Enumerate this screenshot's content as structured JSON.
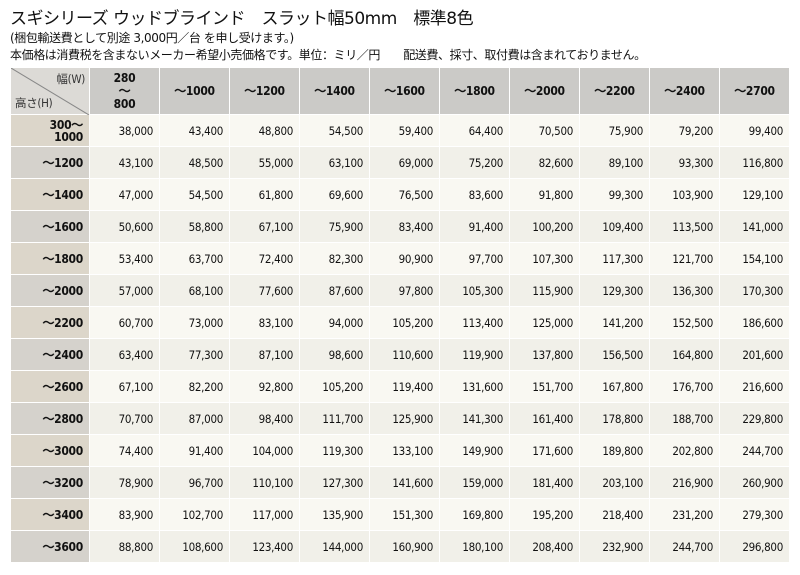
{
  "title": "スギシリーズ ウッドブラインド　スラット幅50mm　標準8色",
  "note1": "(梱包輸送費として別途 3,000円／台 を申し受けます。)",
  "note2": "本価格は消費税を含まないメーカー希望小売価格です。単位：ミリ／円　　配送費、採寸、取付費は含まれておりません。",
  "table": {
    "corner_width": "幅(W)",
    "corner_height": "高さ(H)",
    "columns": [
      "280\n～\n800",
      "～1000",
      "～1200",
      "～1400",
      "～1600",
      "～1800",
      "～2000",
      "～2200",
      "～2400",
      "～2700"
    ],
    "rows": [
      {
        "h": "300～\n1000",
        "v": [
          "38,000",
          "43,400",
          "48,800",
          "54,500",
          "59,400",
          "64,400",
          "70,500",
          "75,900",
          "79,200",
          "99,400"
        ]
      },
      {
        "h": "～1200",
        "v": [
          "43,100",
          "48,500",
          "55,000",
          "63,100",
          "69,000",
          "75,200",
          "82,600",
          "89,100",
          "93,300",
          "116,800"
        ]
      },
      {
        "h": "～1400",
        "v": [
          "47,000",
          "54,500",
          "61,800",
          "69,600",
          "76,500",
          "83,600",
          "91,800",
          "99,300",
          "103,900",
          "129,100"
        ]
      },
      {
        "h": "～1600",
        "v": [
          "50,600",
          "58,800",
          "67,100",
          "75,900",
          "83,400",
          "91,400",
          "100,200",
          "109,400",
          "113,500",
          "141,000"
        ]
      },
      {
        "h": "～1800",
        "v": [
          "53,400",
          "63,700",
          "72,400",
          "82,300",
          "90,900",
          "97,700",
          "107,300",
          "117,300",
          "121,700",
          "154,100"
        ]
      },
      {
        "h": "～2000",
        "v": [
          "57,000",
          "68,100",
          "77,600",
          "87,600",
          "97,800",
          "105,300",
          "115,900",
          "129,300",
          "136,300",
          "170,300"
        ]
      },
      {
        "h": "～2200",
        "v": [
          "60,700",
          "73,000",
          "83,100",
          "94,000",
          "105,200",
          "113,400",
          "125,000",
          "141,200",
          "152,500",
          "186,600"
        ]
      },
      {
        "h": "～2400",
        "v": [
          "63,400",
          "77,300",
          "87,100",
          "98,600",
          "110,600",
          "119,900",
          "137,800",
          "156,500",
          "164,800",
          "201,600"
        ]
      },
      {
        "h": "～2600",
        "v": [
          "67,100",
          "82,200",
          "92,800",
          "105,200",
          "119,400",
          "131,600",
          "151,700",
          "167,800",
          "176,700",
          "216,600"
        ]
      },
      {
        "h": "～2800",
        "v": [
          "70,700",
          "87,000",
          "98,400",
          "111,700",
          "125,900",
          "141,300",
          "161,400",
          "178,800",
          "188,700",
          "229,800"
        ]
      },
      {
        "h": "～3000",
        "v": [
          "74,400",
          "91,400",
          "104,000",
          "119,300",
          "133,100",
          "149,900",
          "171,600",
          "189,800",
          "202,800",
          "244,700"
        ]
      },
      {
        "h": "～3200",
        "v": [
          "78,900",
          "96,700",
          "110,100",
          "127,300",
          "141,600",
          "159,000",
          "181,400",
          "203,100",
          "216,900",
          "260,900"
        ]
      },
      {
        "h": "～3400",
        "v": [
          "83,900",
          "102,700",
          "117,000",
          "135,900",
          "151,300",
          "169,800",
          "195,200",
          "218,400",
          "231,200",
          "279,300"
        ]
      },
      {
        "h": "～3600",
        "v": [
          "88,800",
          "108,600",
          "123,400",
          "144,000",
          "160,900",
          "180,100",
          "208,400",
          "232,900",
          "244,700",
          "296,800"
        ]
      }
    ]
  }
}
